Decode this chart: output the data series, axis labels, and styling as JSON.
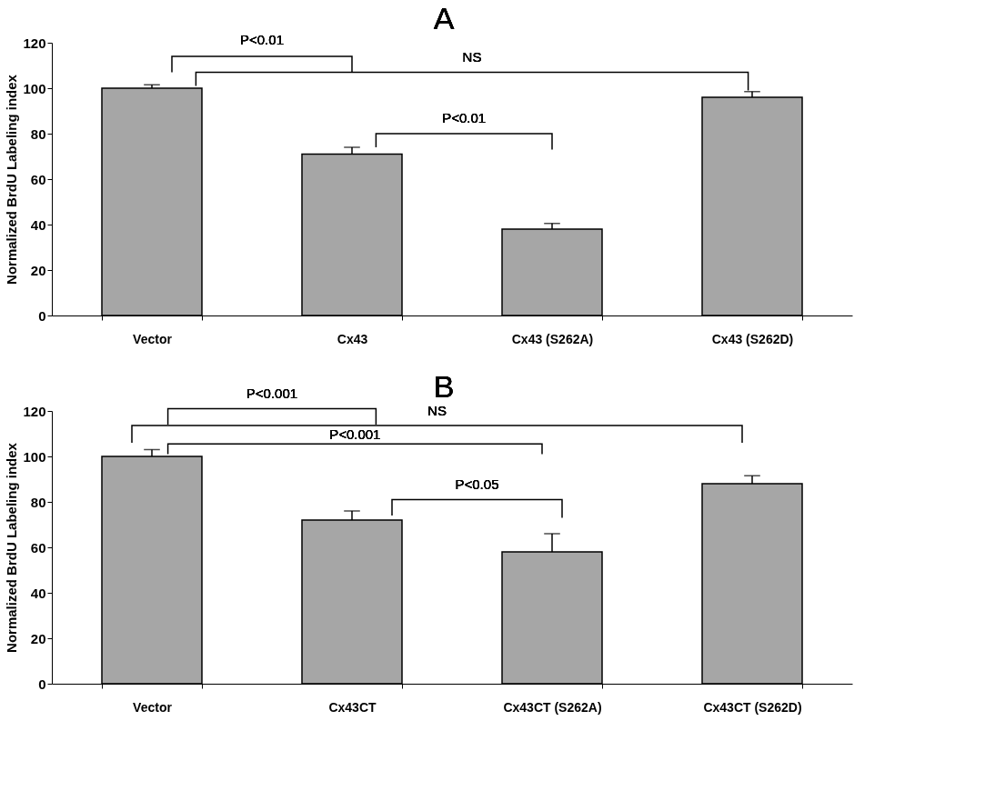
{
  "chart_data": [
    {
      "type": "bar",
      "title": "A",
      "ylabel": "Normalized BrdU Labeling index",
      "categories": [
        "Vector",
        "Cx43",
        "Cx43 (S262A)",
        "Cx43 (S262D)"
      ],
      "values": [
        100,
        71,
        38,
        96
      ],
      "errors": [
        1.5,
        3,
        2.5,
        2.5
      ],
      "color": "#a6a6a6",
      "ylim": [
        0,
        120
      ],
      "yticks": [
        0,
        20,
        40,
        60,
        80,
        100,
        120
      ],
      "annotations": [
        "P<0.01",
        "NS",
        "P<0.01"
      ]
    },
    {
      "type": "bar",
      "title": "B",
      "ylabel": "Normalized BrdU Labeling index",
      "categories": [
        "Vector",
        "Cx43CT",
        "Cx43CT (S262A)",
        "Cx43CT (S262D)"
      ],
      "values": [
        100,
        72,
        58,
        88
      ],
      "errors": [
        3,
        4,
        8,
        3.5
      ],
      "color": "#a6a6a6",
      "ylim": [
        0,
        120
      ],
      "yticks": [
        0,
        20,
        40,
        60,
        80,
        100,
        120
      ],
      "annotations": [
        "P<0.001",
        "NS",
        "P<0.001",
        "P<0.05"
      ]
    }
  ]
}
